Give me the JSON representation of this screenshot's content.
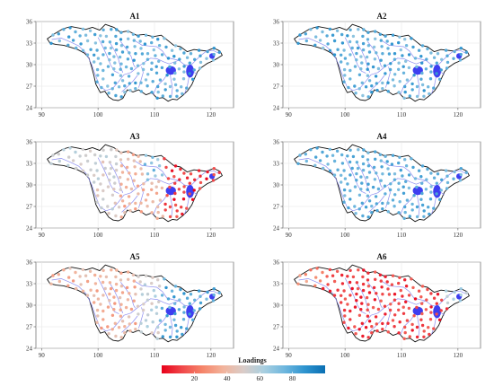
{
  "chart_data": {
    "type": "scatter",
    "panels": [
      {
        "title": "A1",
        "pattern": "uniform_high",
        "low_zones": [],
        "jitter": 10
      },
      {
        "title": "A2",
        "pattern": "uniform_high",
        "low_zones": [],
        "jitter": 10
      },
      {
        "title": "A3",
        "pattern": "east_low_west_mid",
        "low_zones": [],
        "jitter": 8
      },
      {
        "title": "A4",
        "pattern": "uniform_high",
        "low_zones": [],
        "jitter": 6
      },
      {
        "title": "A5",
        "pattern": "west_mid_east_high",
        "low_zones": [],
        "jitter": 8
      },
      {
        "title": "A6",
        "pattern": "uniform_low",
        "low_zones": [],
        "jitter": 8
      }
    ],
    "x_axis": {
      "ticks": [
        90,
        100,
        110,
        120
      ],
      "range": [
        89,
        124
      ]
    },
    "y_axis": {
      "ticks": [
        24,
        27,
        30,
        33,
        36
      ],
      "range": [
        24,
        36
      ]
    },
    "legend": {
      "title": "Loadings",
      "ticks": [
        20,
        40,
        60,
        80
      ],
      "range": [
        0,
        100
      ],
      "position": "bottom-center",
      "colors": [
        "#e8001a",
        "#f0484a",
        "#f5856a",
        "#f2b39b",
        "#d9ccc8",
        "#a9cfe0",
        "#6fb7de",
        "#2e94cf",
        "#0a6fb3"
      ]
    },
    "basin_color": "#111111",
    "river_color": "#8d8df0",
    "grid": true
  }
}
